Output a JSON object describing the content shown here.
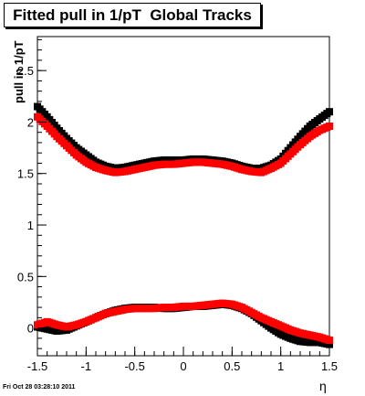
{
  "chart_data": {
    "type": "scatter",
    "title": "Fitted pull in 1/pT  Global Tracks",
    "xlabel": "η",
    "ylabel": "pull in 1/pT",
    "xlim": [
      -1.5,
      1.5
    ],
    "ylim": [
      -0.27,
      2.83
    ],
    "xticks": [
      -1.5,
      -1,
      -0.5,
      0,
      0.5,
      1,
      1.5
    ],
    "xtick_labels": [
      "-1.5",
      "-1",
      "-0.5",
      "0",
      "0.5",
      "1",
      "1.5"
    ],
    "yticks": [
      0,
      0.5,
      1,
      1.5,
      2,
      2.5
    ],
    "ytick_labels": [
      "0",
      "0.5",
      "1",
      "1.5",
      "2",
      "2.5"
    ],
    "grid": false,
    "legend": "none",
    "footer": "Fri Oct 28 03:28:10 2011",
    "series": [
      {
        "color": "#000000",
        "x": [
          -1.5,
          -1.4,
          -1.3,
          -1.2,
          -1.1,
          -1.0,
          -0.9,
          -0.8,
          -0.7,
          -0.6,
          -0.5,
          -0.4,
          -0.3,
          -0.2,
          -0.1,
          0.0,
          0.1,
          0.2,
          0.3,
          0.4,
          0.5,
          0.6,
          0.7,
          0.8,
          0.9,
          1.0,
          1.1,
          1.2,
          1.3,
          1.4,
          1.5
        ],
        "y": [
          2.15,
          2.05,
          1.94,
          1.84,
          1.75,
          1.68,
          1.61,
          1.57,
          1.55,
          1.56,
          1.58,
          1.6,
          1.62,
          1.63,
          1.63,
          1.63,
          1.64,
          1.64,
          1.63,
          1.62,
          1.6,
          1.57,
          1.55,
          1.55,
          1.58,
          1.64,
          1.75,
          1.86,
          1.96,
          2.03,
          2.1
        ]
      },
      {
        "color": "#ff0000",
        "x": [
          -1.5,
          -1.4,
          -1.3,
          -1.2,
          -1.1,
          -1.0,
          -0.9,
          -0.8,
          -0.7,
          -0.6,
          -0.5,
          -0.4,
          -0.3,
          -0.2,
          -0.1,
          0.0,
          0.1,
          0.2,
          0.3,
          0.4,
          0.5,
          0.6,
          0.7,
          0.8,
          0.9,
          1.0,
          1.1,
          1.2,
          1.3,
          1.4,
          1.5
        ],
        "y": [
          2.05,
          1.96,
          1.86,
          1.77,
          1.68,
          1.61,
          1.56,
          1.53,
          1.51,
          1.52,
          1.54,
          1.56,
          1.58,
          1.59,
          1.59,
          1.6,
          1.61,
          1.61,
          1.6,
          1.59,
          1.57,
          1.54,
          1.52,
          1.51,
          1.55,
          1.6,
          1.69,
          1.78,
          1.86,
          1.92,
          1.96
        ]
      },
      {
        "color": "#000000",
        "x": [
          -1.5,
          -1.4,
          -1.3,
          -1.2,
          -1.1,
          -1.0,
          -0.9,
          -0.8,
          -0.7,
          -0.6,
          -0.5,
          -0.4,
          -0.3,
          -0.2,
          -0.1,
          0.0,
          0.1,
          0.2,
          0.3,
          0.4,
          0.5,
          0.6,
          0.7,
          0.8,
          0.9,
          1.0,
          1.1,
          1.2,
          1.3,
          1.4,
          1.5
        ],
        "y": [
          0.01,
          -0.01,
          -0.03,
          -0.02,
          0.02,
          0.06,
          0.1,
          0.14,
          0.17,
          0.19,
          0.2,
          0.2,
          0.2,
          0.19,
          0.19,
          0.2,
          0.21,
          0.21,
          0.22,
          0.23,
          0.22,
          0.19,
          0.14,
          0.07,
          0.0,
          -0.06,
          -0.1,
          -0.13,
          -0.14,
          -0.14,
          -0.16
        ]
      },
      {
        "color": "#ff0000",
        "x": [
          -1.5,
          -1.4,
          -1.3,
          -1.2,
          -1.1,
          -1.0,
          -0.9,
          -0.8,
          -0.7,
          -0.6,
          -0.5,
          -0.4,
          -0.3,
          -0.2,
          -0.1,
          0.0,
          0.1,
          0.2,
          0.3,
          0.4,
          0.5,
          0.6,
          0.7,
          0.8,
          0.9,
          1.0,
          1.1,
          1.2,
          1.3,
          1.4,
          1.5
        ],
        "y": [
          0.03,
          0.06,
          0.03,
          0.01,
          0.03,
          0.06,
          0.1,
          0.14,
          0.16,
          0.18,
          0.19,
          0.19,
          0.19,
          0.2,
          0.2,
          0.21,
          0.21,
          0.22,
          0.23,
          0.24,
          0.23,
          0.2,
          0.15,
          0.1,
          0.06,
          0.02,
          -0.02,
          -0.05,
          -0.07,
          -0.09,
          -0.12
        ]
      }
    ]
  }
}
